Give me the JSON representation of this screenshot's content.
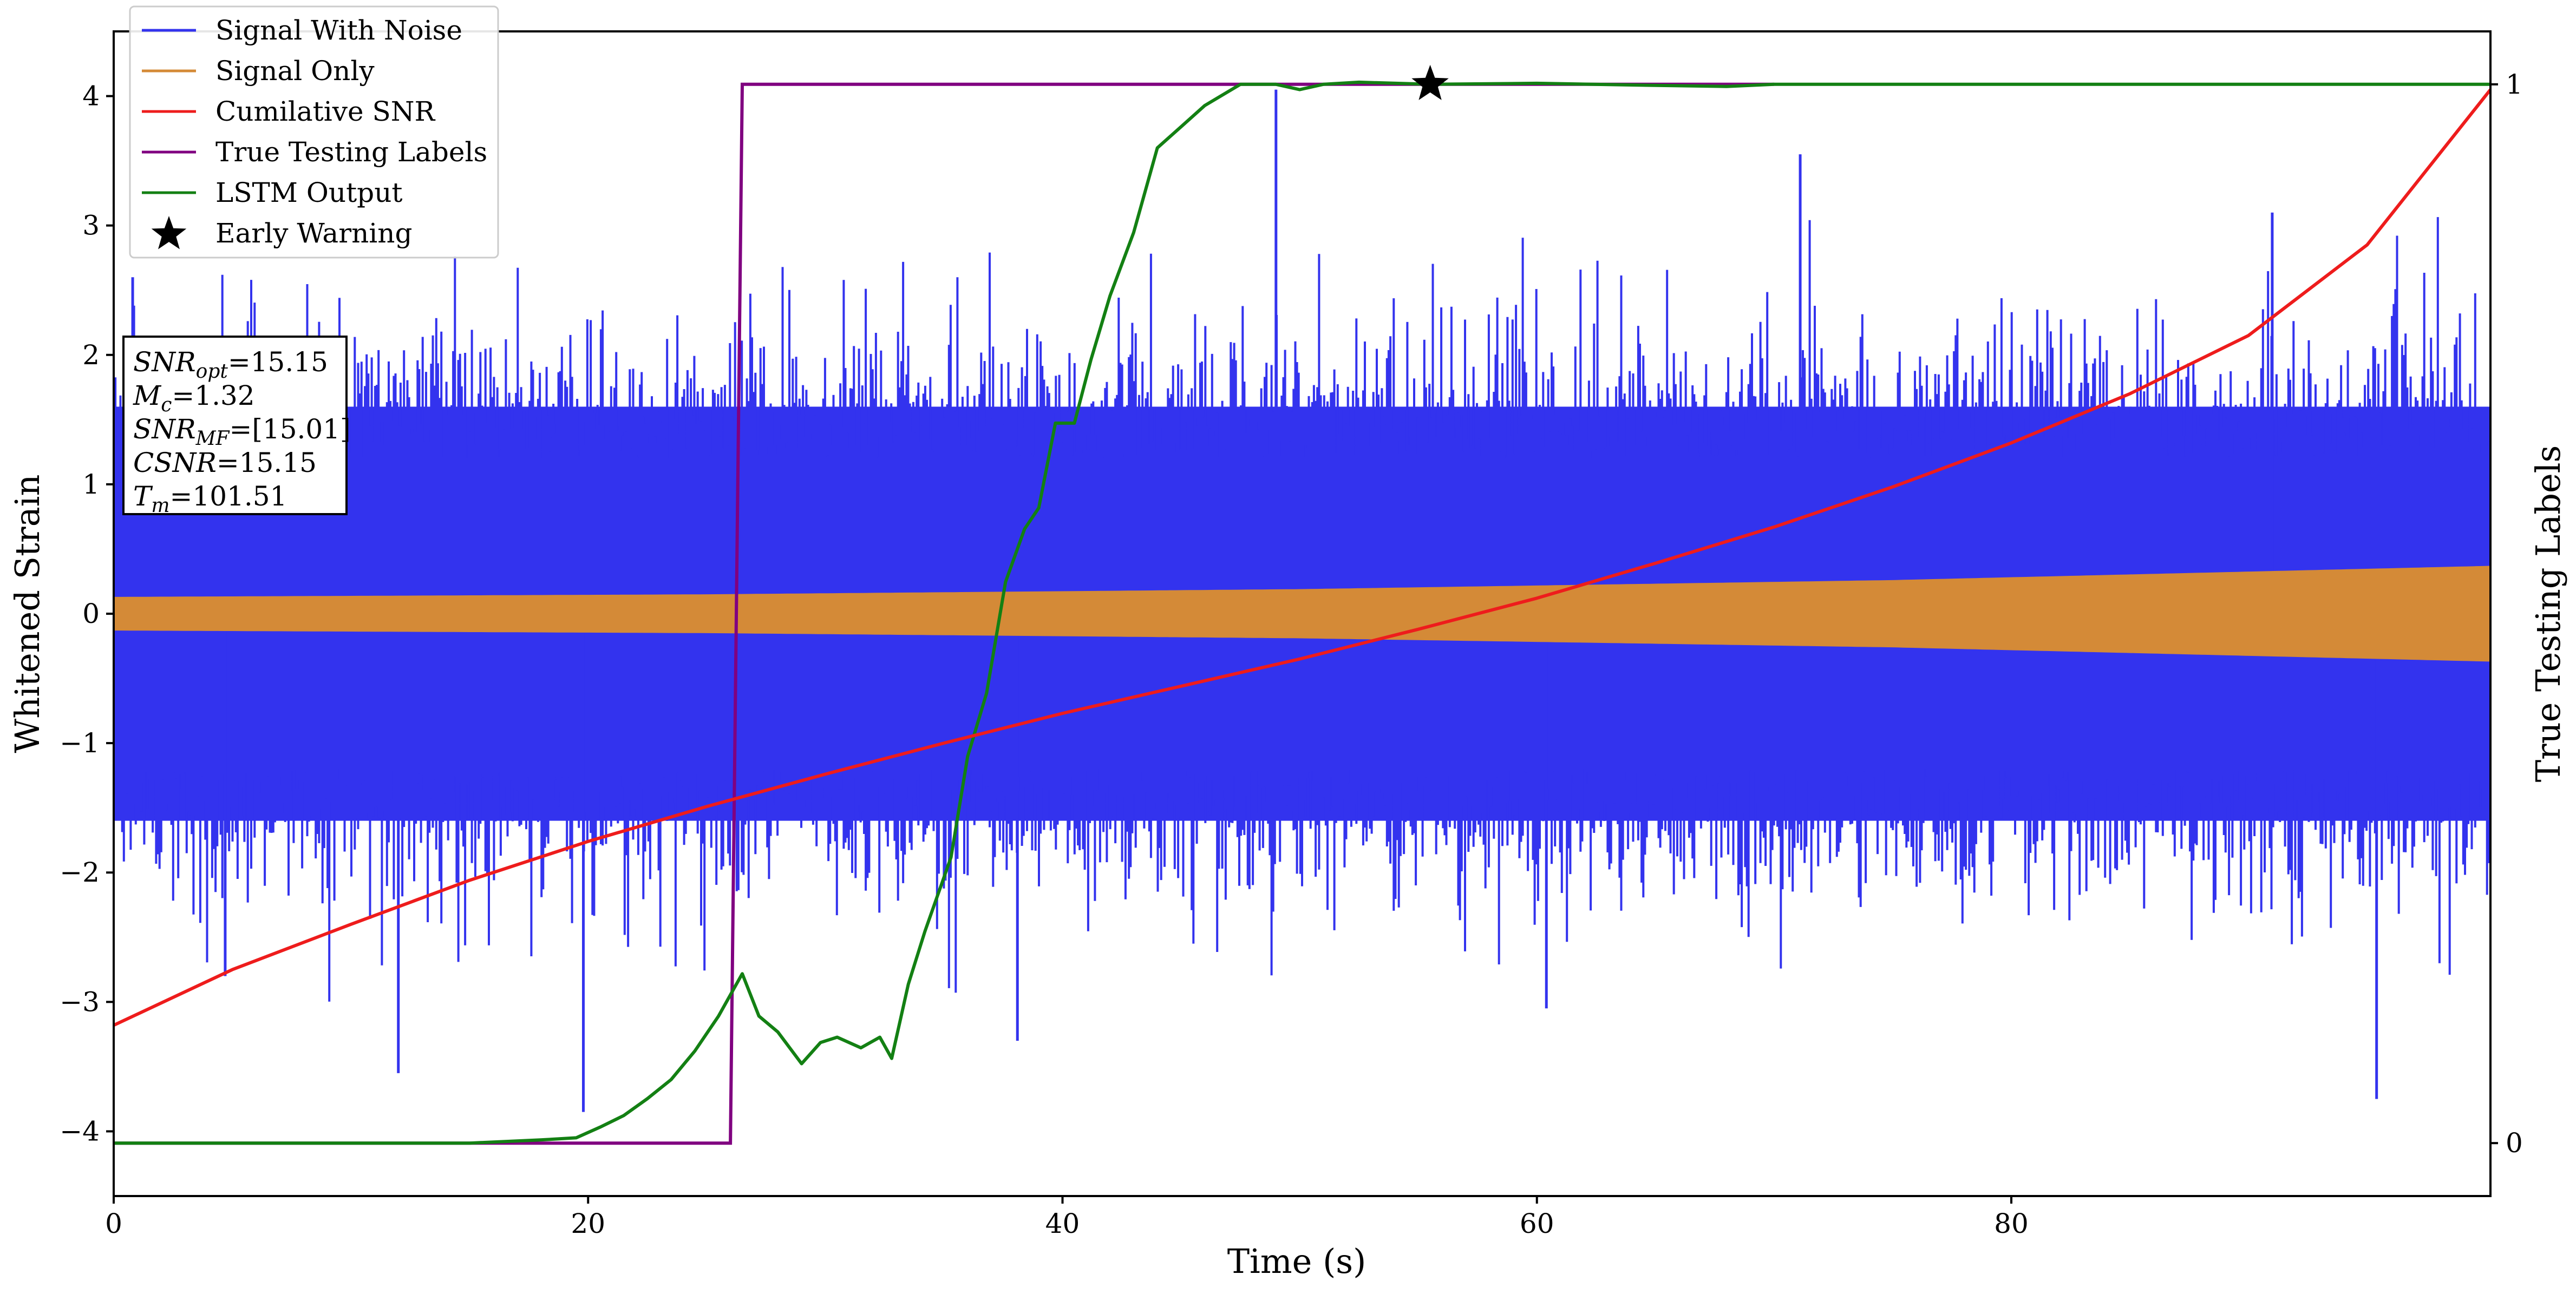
{
  "chart_data": {
    "type": "line",
    "xlabel": "Time (s)",
    "ylabel": "Whitened Strain",
    "y2label": "True Testing Labels",
    "xlim": [
      0,
      100.2
    ],
    "ylim": [
      -4.5,
      4.5
    ],
    "y2lim": [
      -0.05,
      1.05
    ],
    "x_ticks": [
      0,
      20,
      40,
      60,
      80
    ],
    "x_tick_labels": [
      "0",
      "20",
      "40",
      "60",
      "80"
    ],
    "y_ticks": [
      -4,
      -3,
      -2,
      -1,
      0,
      1,
      2,
      3,
      4
    ],
    "y_tick_labels": [
      "−4",
      "−3",
      "−2",
      "−1",
      "0",
      "1",
      "2",
      "3",
      "4"
    ],
    "y2_ticks": [
      0,
      1
    ],
    "y2_tick_labels": [
      "0",
      "1"
    ],
    "grid": false,
    "legend_position": "top-left",
    "colors": {
      "signal_with_noise": "#3333ee",
      "signal_only": "#d48a37",
      "cumulative_snr": "#ee1c1c",
      "true_labels": "#800080",
      "lstm_output": "#138013",
      "early_warning": "#000000"
    },
    "series": [
      {
        "name": "Signal With Noise",
        "axis": "left",
        "description_values": "noisy whitened strain, band approx -1.6..1.6 with spikes to about ±3.5",
        "noise_envelope": [
          1.6,
          -1.6
        ],
        "spikes": [
          {
            "x": 0.8,
            "y": 2.6
          },
          {
            "x": 4.7,
            "y": -2.8
          },
          {
            "x": 12.0,
            "y": -3.55
          },
          {
            "x": 19.8,
            "y": -3.85
          },
          {
            "x": 38.1,
            "y": -3.3
          },
          {
            "x": 49.0,
            "y": 4.05
          },
          {
            "x": 60.4,
            "y": -3.05
          },
          {
            "x": 71.1,
            "y": 3.55
          },
          {
            "x": 91.0,
            "y": 3.1
          },
          {
            "x": 95.4,
            "y": -3.75
          }
        ]
      },
      {
        "name": "Signal Only",
        "axis": "left",
        "envelope_x": [
          0,
          25,
          50,
          75,
          100.2
        ],
        "envelope_amp": [
          0.13,
          0.15,
          0.19,
          0.26,
          0.37
        ]
      },
      {
        "name": "Cumilative SNR",
        "axis": "left",
        "x": [
          0,
          5,
          10,
          15,
          20,
          25,
          30,
          35,
          40,
          45,
          50,
          55,
          60,
          65,
          70,
          75,
          80,
          85,
          90,
          95,
          100.2
        ],
        "y": [
          -3.18,
          -2.75,
          -2.4,
          -2.06,
          -1.76,
          -1.49,
          -1.24,
          -1.0,
          -0.77,
          -0.56,
          -0.35,
          -0.12,
          0.12,
          0.39,
          0.67,
          0.98,
          1.32,
          1.7,
          2.15,
          2.85,
          4.05
        ]
      },
      {
        "name": "True Testing Labels",
        "axis": "right",
        "x": [
          0,
          26.0,
          26.5,
          70.0
        ],
        "y": [
          0,
          0,
          1,
          1
        ]
      },
      {
        "name": "LSTM Output",
        "axis": "right",
        "x": [
          0,
          15,
          18,
          19.5,
          20.5,
          21.5,
          22.5,
          23.5,
          24.5,
          25.5,
          26.5,
          27.2,
          28,
          29,
          29.8,
          30.5,
          31.5,
          32.3,
          32.8,
          33.5,
          34.2,
          35.3,
          36,
          36.8,
          37.6,
          38.4,
          39,
          39.7,
          40.5,
          41.2,
          42,
          43,
          44,
          45,
          46,
          47.5,
          49,
          50,
          51,
          52.5,
          55.5,
          60,
          65,
          68,
          70,
          100.2
        ],
        "y": [
          0,
          0,
          0.003,
          0.005,
          0.015,
          0.026,
          0.042,
          0.06,
          0.087,
          0.12,
          0.16,
          0.12,
          0.105,
          0.075,
          0.095,
          0.1,
          0.09,
          0.1,
          0.08,
          0.15,
          0.2,
          0.27,
          0.365,
          0.425,
          0.53,
          0.58,
          0.6,
          0.68,
          0.68,
          0.74,
          0.8,
          0.86,
          0.94,
          0.96,
          0.98,
          1.0,
          1.0,
          0.995,
          1.0,
          1.002,
          1.0,
          1.001,
          0.999,
          0.998,
          1.0,
          1.0
        ]
      },
      {
        "name": "Early Warning",
        "axis": "right",
        "type": "scatter",
        "marker": "star",
        "x": [
          55.5
        ],
        "y": [
          1.0
        ]
      }
    ],
    "annotation_box": {
      "lines": [
        {
          "base": "SNR",
          "sub": "opt",
          "rest": "=15.15"
        },
        {
          "base": "M",
          "sub": "c",
          "rest": "=1.32"
        },
        {
          "base": "SNR",
          "sub": "MF",
          "rest": "=[15.01]"
        },
        {
          "base": "CSNR",
          "sub": "",
          "rest": "=15.15"
        },
        {
          "base": "T",
          "sub": "m",
          "rest": "=101.51"
        }
      ]
    }
  }
}
